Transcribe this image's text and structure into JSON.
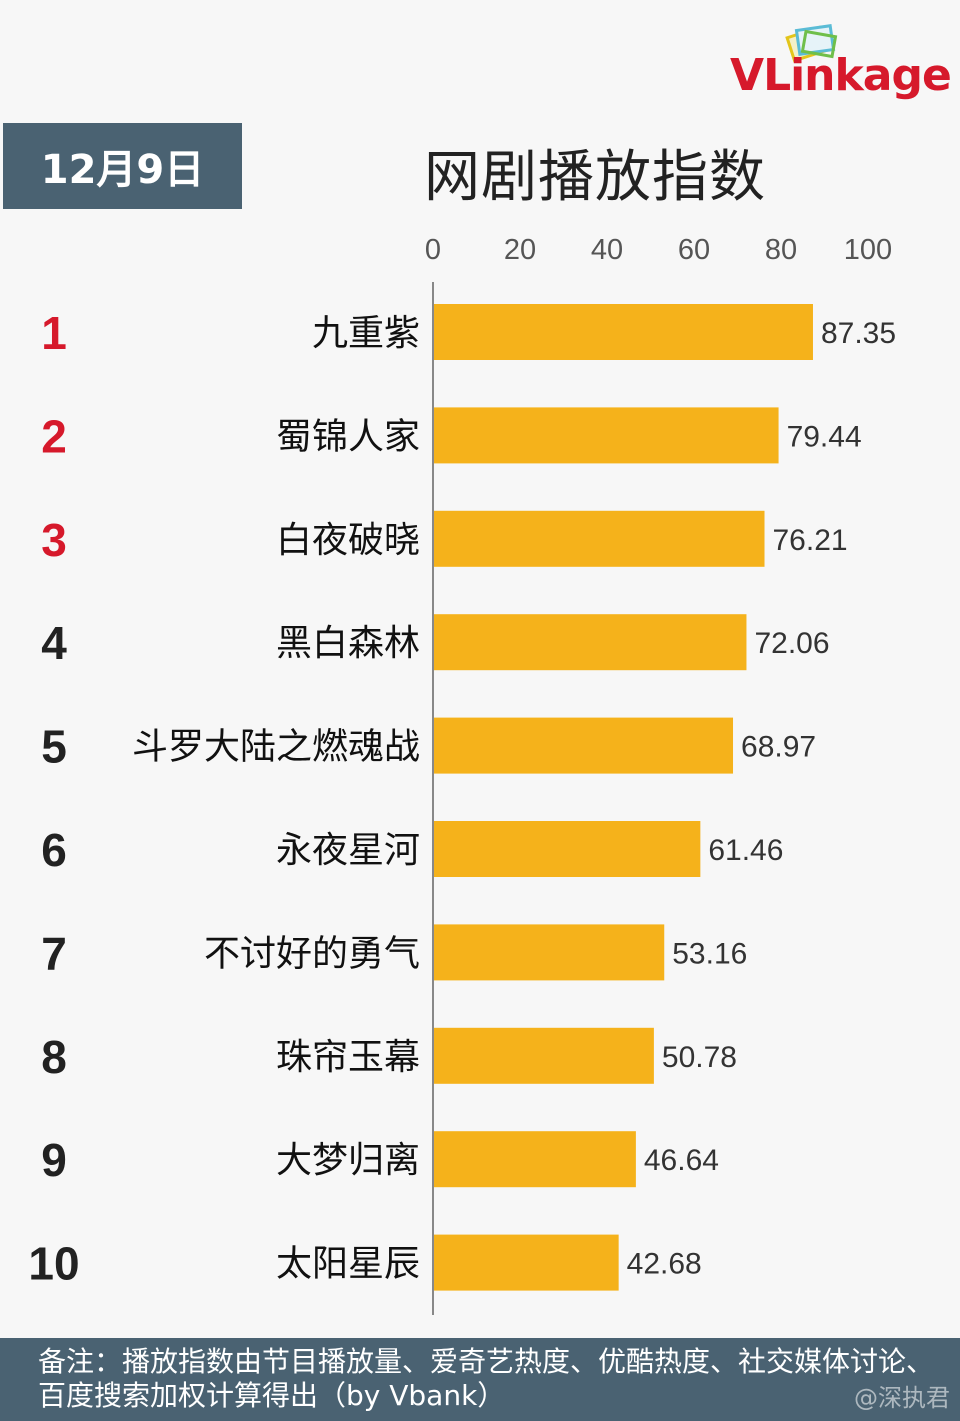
{
  "date_label": "12月9日",
  "logo": {
    "v": "V",
    "rest": "Linkage"
  },
  "chart_data": {
    "type": "bar",
    "orientation": "horizontal",
    "title": "网剧播放指数",
    "ranks": [
      "1",
      "2",
      "3",
      "4",
      "5",
      "6",
      "7",
      "8",
      "9",
      "10"
    ],
    "categories": [
      "九重紫",
      "蜀锦人家",
      "白夜破晓",
      "黑白森林",
      "斗罗大陆之燃魂战",
      "永夜星河",
      "不讨好的勇气",
      "珠帘玉幕",
      "大梦归离",
      "太阳星辰"
    ],
    "values": [
      87.35,
      79.44,
      76.21,
      72.06,
      68.97,
      61.46,
      53.16,
      50.78,
      46.64,
      42.68
    ],
    "value_labels": [
      "87.35",
      "79.44",
      "76.21",
      "72.06",
      "68.97",
      "61.46",
      "53.16",
      "50.78",
      "46.64",
      "42.68"
    ],
    "xlim": [
      0,
      100
    ],
    "ticks": [
      0,
      20,
      40,
      60,
      80,
      100
    ],
    "tick_labels": [
      "0",
      "20",
      "40",
      "60",
      "80",
      "100"
    ],
    "grid": false,
    "axis_position": "top",
    "colors": {
      "bar": "#f5b21b",
      "rank_top3": "#d6192b",
      "rank_other": "#222222"
    }
  },
  "note": "备注：播放指数由节目播放量、爱奇艺热度、优酷热度、社交媒体讨论、百度搜索加权计算得出（by Vbank）",
  "watermark": "@深执君"
}
